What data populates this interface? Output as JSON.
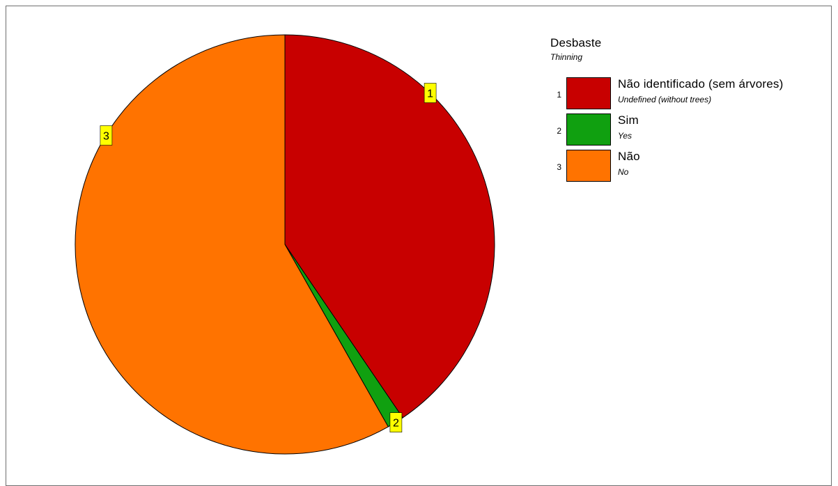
{
  "chart_data": {
    "type": "pie",
    "title": "Desbaste",
    "subtitle": "Thinning",
    "slices": [
      {
        "id": "1",
        "label": "Não identificado (sem árvores)",
        "sublabel": "Undefined (without trees)",
        "value": 40.5,
        "color": "#c80000"
      },
      {
        "id": "2",
        "label": "Sim",
        "sublabel": "Yes",
        "value": 1.3,
        "color": "#10a010"
      },
      {
        "id": "3",
        "label": "Não",
        "sublabel": "No",
        "value": 58.2,
        "color": "#ff7300"
      }
    ],
    "legend_position": "top-right",
    "slice_label_style": "yellow-boxed numbers"
  }
}
